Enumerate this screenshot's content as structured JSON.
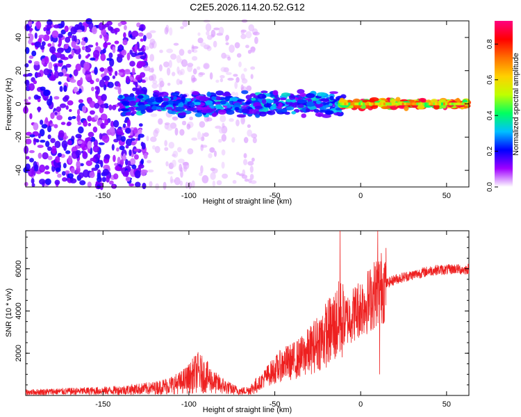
{
  "figure": {
    "title": "C2E5.2026.114.20.52.G12"
  },
  "chart_data": [
    {
      "type": "heatmap",
      "id": "spectrogram",
      "title": "",
      "xlabel": "Height of straight line (km)",
      "ylabel": "Frequency (Hz)",
      "xlim": [
        -195,
        63
      ],
      "ylim": [
        -50,
        50
      ],
      "xticks": [
        -150,
        -100,
        -50,
        0,
        50
      ],
      "yticks": [
        -40,
        -20,
        0,
        20,
        40
      ],
      "colorbar": {
        "label": "Normalized spectral amplitude",
        "range": [
          0,
          0.93
        ],
        "ticks": [
          0.0,
          0.2,
          0.4,
          0.6,
          0.8
        ],
        "tick_labels": [
          "0.0",
          "0.2",
          "0.4",
          "0.6",
          "0.8"
        ],
        "colormap": [
          "#ffffff",
          "#a000ff",
          "#0000ff",
          "#00c0ff",
          "#00ff60",
          "#c0ff00",
          "#ffd000",
          "#ff7000",
          "#ff0000",
          "#ff0080"
        ]
      },
      "regions": [
        {
          "name": "scattered noise",
          "x": [
            -195,
            -125
          ],
          "y": [
            -50,
            50
          ],
          "amplitude": [
            0.05,
            0.2
          ]
        },
        {
          "name": "diffuse noise",
          "x": [
            -125,
            -60
          ],
          "y": [
            -50,
            50
          ],
          "amplitude": [
            0.02,
            0.05
          ]
        },
        {
          "name": "signal band onset",
          "x": [
            -140,
            -10
          ],
          "y_center": 0,
          "y_halfwidth": 8,
          "amplitude": [
            0.1,
            0.35
          ]
        },
        {
          "name": "steady tone",
          "x": [
            -12,
            63
          ],
          "y_center": 0,
          "y_halfwidth": 3,
          "amplitude": [
            0.4,
            0.93
          ]
        }
      ]
    },
    {
      "type": "line",
      "id": "snr",
      "title": "",
      "xlabel": "Height of straight line (km)",
      "ylabel": "SNR (10 * v/v)",
      "xlim": [
        -195,
        63
      ],
      "ylim": [
        0,
        7800
      ],
      "xticks": [
        -150,
        -100,
        -50,
        0,
        50
      ],
      "yticks": [
        2000,
        4000,
        6000
      ],
      "color": "#ee2020",
      "series": [
        {
          "name": "SNR",
          "x": [
            -195,
            -180,
            -165,
            -150,
            -140,
            -130,
            -120,
            -110,
            -105,
            -100,
            -95,
            -90,
            -85,
            -80,
            -75,
            -70,
            -65,
            -60,
            -55,
            -50,
            -45,
            -40,
            -35,
            -30,
            -25,
            -20,
            -15,
            -12,
            -10,
            -8,
            -5,
            0,
            5,
            8,
            10,
            12,
            15,
            20,
            25,
            30,
            35,
            40,
            45,
            50,
            55,
            60,
            63
          ],
          "y": [
            150,
            180,
            200,
            220,
            250,
            300,
            350,
            500,
            600,
            800,
            1100,
            900,
            600,
            450,
            300,
            200,
            250,
            500,
            900,
            1200,
            1500,
            1600,
            1800,
            2100,
            2500,
            2900,
            3300,
            3600,
            3500,
            3600,
            3800,
            4200,
            4500,
            4800,
            5000,
            5100,
            5300,
            5500,
            5600,
            5700,
            5800,
            5900,
            5950,
            5950,
            6000,
            5950,
            6000
          ]
        }
      ],
      "spikes": [
        {
          "x": -12,
          "y": 7800
        },
        {
          "x": 10,
          "y": 7800
        },
        {
          "x": 11,
          "y": 1000
        }
      ]
    }
  ]
}
